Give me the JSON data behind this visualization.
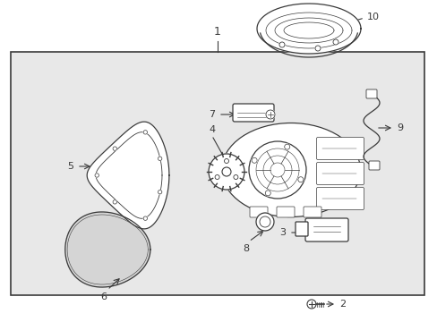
{
  "bg_color": "#ffffff",
  "box_bg": "#e8e8e8",
  "line_color": "#3a3a3a",
  "lw": 0.9
}
